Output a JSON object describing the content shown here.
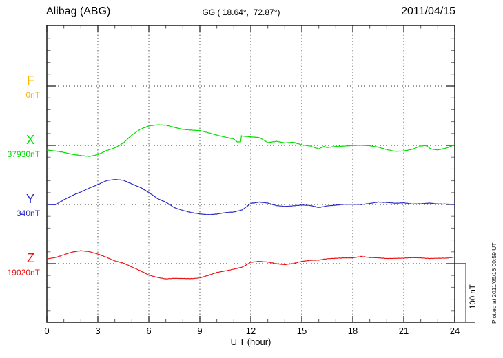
{
  "header": {
    "station": "Alibag (ABG)",
    "coordinates": "GG ( 18.64°,  72.87°)",
    "date": "2011/04/15"
  },
  "x_axis": {
    "label": "U T (hour)",
    "tick_labels": [
      "0",
      "3",
      "6",
      "9",
      "12",
      "15",
      "18",
      "21",
      "24"
    ]
  },
  "scale_bar_label": "100 nT",
  "footer_note": "Plotted at 2011/05/16 00:59 UT",
  "chart_data": {
    "type": "line",
    "title": "Alibag (ABG) magnetogram for 2011/04/15",
    "xlabel": "U T (hour)",
    "x_range": [
      0,
      24
    ],
    "x_major_tick_hours": 3,
    "x_minor_tick_hours": 1,
    "y_minor_tick_nT": 20,
    "component_offset_nT": 100,
    "scale_bar_nT": 100,
    "grid": "dotted vertical lines every 3 hours, dotted horizontal line at each component baseline",
    "legend_position": "left margin, one colored label per component",
    "series": [
      {
        "label": "F",
        "baseline_label": "0nT",
        "color": "#FFB400",
        "hours": [],
        "values_nT": [],
        "note": "baseline only, no trace plotted"
      },
      {
        "label": "X",
        "baseline_label": "37930nT",
        "color": "#00DD00",
        "hours": [
          0,
          0.5,
          1,
          1.5,
          2,
          2.5,
          3,
          3.5,
          4,
          4.5,
          5,
          5.5,
          6,
          6.5,
          7,
          7.5,
          8,
          8.5,
          9,
          9.5,
          10,
          10.5,
          11,
          11.2,
          11.4,
          11.45,
          11.7,
          12,
          12.5,
          13,
          13.5,
          14,
          14.5,
          15,
          15.5,
          16,
          16.3,
          16.5,
          17,
          17.5,
          18,
          18.5,
          19,
          19.5,
          20,
          20.5,
          21,
          21.5,
          22,
          22.3,
          22.6,
          23,
          23.5,
          24
        ],
        "values_nT": [
          -8,
          -10,
          -12,
          -15,
          -17,
          -19,
          -16,
          -9,
          -4,
          4,
          17,
          27,
          33,
          35,
          34,
          30,
          27,
          26,
          25,
          21,
          17,
          14,
          11,
          6,
          6,
          16,
          15,
          14,
          13,
          5,
          7,
          4,
          5,
          1,
          -1,
          -6,
          -2,
          -4,
          -2,
          -1,
          0,
          0,
          -1,
          -3,
          -7,
          -10,
          -10,
          -7,
          -1,
          0,
          -6,
          -8,
          -5,
          1
        ]
      },
      {
        "label": "Y",
        "baseline_label": "340nT",
        "color": "#2A2AC8",
        "hours": [
          0,
          0.5,
          1,
          1.5,
          2,
          2.5,
          3,
          3.5,
          4,
          4.5,
          5,
          5.5,
          6,
          6.5,
          7,
          7.5,
          8,
          8.5,
          9,
          9.5,
          10,
          10.5,
          11,
          11.5,
          12,
          12.5,
          13,
          13.5,
          14,
          14.5,
          15,
          15.5,
          16,
          16.5,
          17,
          17.5,
          18,
          18.5,
          19,
          19.5,
          20,
          20.5,
          21,
          21.5,
          22,
          22.5,
          23,
          23.5,
          24
        ],
        "values_nT": [
          0,
          0,
          8,
          15,
          21,
          28,
          34,
          40,
          42,
          41,
          35,
          29,
          20,
          10,
          4,
          -5,
          -10,
          -14,
          -16,
          -17,
          -16,
          -14,
          -13,
          -9,
          2,
          4,
          2,
          -2,
          -3,
          -2,
          -1,
          -2,
          -5,
          -2,
          -1,
          0,
          0,
          0,
          2,
          4,
          3,
          2,
          3,
          1,
          1,
          2,
          1,
          1,
          0
        ]
      },
      {
        "label": "Z",
        "baseline_label": "19020nT",
        "color": "#EE1111",
        "hours": [
          0,
          0.5,
          1,
          1.5,
          2,
          2.5,
          3,
          3.5,
          4,
          4.5,
          5,
          5.5,
          6,
          6.5,
          7,
          7.5,
          8,
          8.5,
          9,
          9.5,
          10,
          10.5,
          11,
          11.5,
          12,
          12.5,
          13,
          13.5,
          14,
          14.5,
          15,
          15.5,
          16,
          16.5,
          17,
          17.5,
          18,
          18.5,
          19,
          19.5,
          20,
          20.5,
          21,
          21.5,
          22,
          22.5,
          23,
          23.5,
          24
        ],
        "values_nT": [
          8,
          10,
          15,
          20,
          22,
          20,
          16,
          11,
          5,
          1,
          -6,
          -12,
          -19,
          -23,
          -26,
          -25,
          -25,
          -25,
          -24,
          -20,
          -15,
          -12,
          -9,
          -6,
          2,
          4,
          3,
          0,
          -2,
          0,
          4,
          6,
          6,
          8,
          9,
          10,
          10,
          12,
          10,
          10,
          9,
          9,
          9,
          10,
          10,
          9,
          9,
          9,
          11
        ]
      }
    ]
  }
}
